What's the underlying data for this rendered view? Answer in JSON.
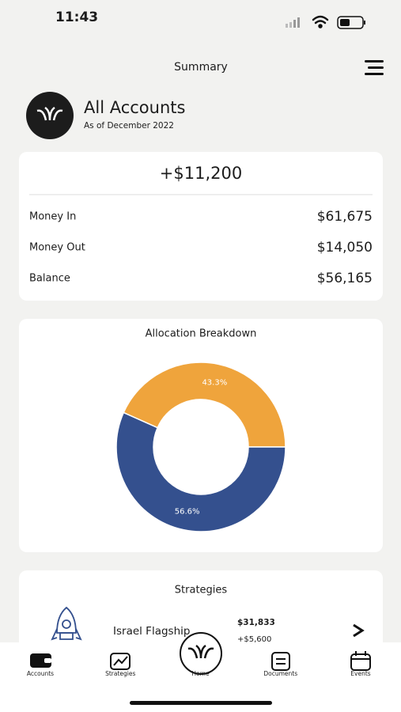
{
  "status": {
    "time": "11:43"
  },
  "header": {
    "title": "Summary"
  },
  "account": {
    "name": "All Accounts",
    "date": "As of December 2022"
  },
  "summary": {
    "total": "+$11,200",
    "rows": [
      [
        "Money In",
        "$61,675"
      ],
      [
        "Money Out",
        "$14,050"
      ],
      [
        "Balance",
        "$56,165"
      ]
    ]
  },
  "allocation": {
    "chart_data": {
      "type": "pie",
      "title": "Allocation Breakdown",
      "values": [
        43.3,
        56.6
      ],
      "value_labels": [
        "43.3%",
        "56.6%"
      ],
      "colors": [
        "#efa43c",
        "#34508e"
      ],
      "donut": true
    }
  },
  "strategies": {
    "title": "Strategies",
    "items": [
      {
        "name": "Israel Flagship",
        "value": "$31,833",
        "change": "+$5,600"
      }
    ]
  },
  "tabs": [
    "Accounts",
    "Strategies",
    "Home",
    "Documents",
    "Events"
  ]
}
